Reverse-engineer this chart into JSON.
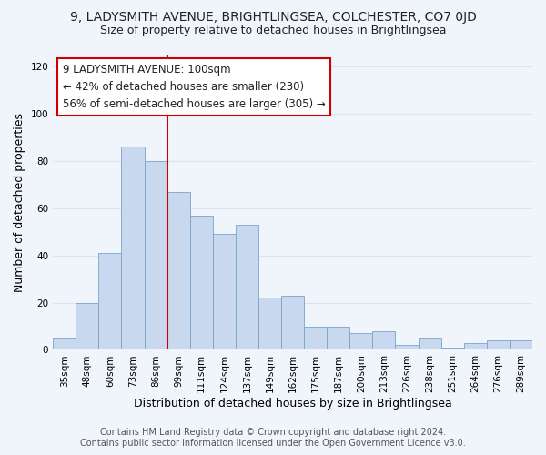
{
  "title": "9, LADYSMITH AVENUE, BRIGHTLINGSEA, COLCHESTER, CO7 0JD",
  "subtitle": "Size of property relative to detached houses in Brightlingsea",
  "xlabel": "Distribution of detached houses by size in Brightlingsea",
  "ylabel": "Number of detached properties",
  "footnote1": "Contains HM Land Registry data © Crown copyright and database right 2024.",
  "footnote2": "Contains public sector information licensed under the Open Government Licence v3.0.",
  "categories": [
    "35sqm",
    "48sqm",
    "60sqm",
    "73sqm",
    "86sqm",
    "99sqm",
    "111sqm",
    "124sqm",
    "137sqm",
    "149sqm",
    "162sqm",
    "175sqm",
    "187sqm",
    "200sqm",
    "213sqm",
    "226sqm",
    "238sqm",
    "251sqm",
    "264sqm",
    "276sqm",
    "289sqm"
  ],
  "values": [
    5,
    20,
    41,
    86,
    80,
    67,
    57,
    49,
    53,
    22,
    23,
    10,
    10,
    7,
    8,
    2,
    5,
    1,
    3,
    4,
    4
  ],
  "bar_color": "#c8d8ee",
  "bar_edge_color": "#7aa4cc",
  "annotation_line1": "9 LADYSMITH AVENUE: 100sqm",
  "annotation_line2": "← 42% of detached houses are smaller (230)",
  "annotation_line3": "56% of semi-detached houses are larger (305) →",
  "vline_x": 5,
  "ylim": [
    0,
    125
  ],
  "yticks": [
    0,
    20,
    40,
    60,
    80,
    100,
    120
  ],
  "background_color": "#f0f4fb",
  "grid_color": "#d8e4f0",
  "annotation_box_color": "#ffffff",
  "annotation_border_color": "#cc0000",
  "vline_color": "#cc0000",
  "title_fontsize": 10,
  "subtitle_fontsize": 9,
  "axis_label_fontsize": 9,
  "tick_fontsize": 7.5,
  "annotation_fontsize": 8.5,
  "footnote_fontsize": 7
}
